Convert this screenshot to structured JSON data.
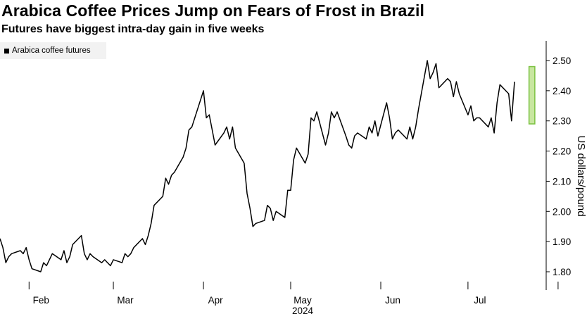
{
  "header": {
    "title": "Arabica Coffee Prices Jump on Fears of Frost in Brazil",
    "subtitle": "Futures have biggest intra-day gain in five weeks"
  },
  "colors": {
    "line": "#000000",
    "highlight_fill": "#c8e6a0",
    "highlight_stroke": "#7cc242",
    "legend_bg": "#f2f2f2"
  },
  "chart_data": {
    "type": "line",
    "title": "Arabica Coffee Prices Jump on Fears of Frost in Brazil",
    "subtitle": "Futures have biggest intra-day gain in five weeks",
    "ylabel": "US dollars/pound",
    "xlabel": "",
    "ylim": [
      1.73,
      2.56
    ],
    "yticks": [
      "1.80",
      "1.90",
      "2.00",
      "2.10",
      "2.20",
      "2.30",
      "2.40",
      "2.50"
    ],
    "ytick_values": [
      1.8,
      1.9,
      2.0,
      2.1,
      2.2,
      2.3,
      2.4,
      2.5
    ],
    "xlim": [
      "2024-01-22",
      "2024-07-25"
    ],
    "xticks": [
      {
        "label": "Feb",
        "date": "2024-02-01"
      },
      {
        "label": "Mar",
        "date": "2024-03-01"
      },
      {
        "label": "Apr",
        "date": "2024-04-01"
      },
      {
        "label": "May",
        "date": "2024-05-01"
      },
      {
        "label": "Jun",
        "date": "2024-06-01"
      },
      {
        "label": "Jul",
        "date": "2024-07-01"
      }
    ],
    "year_label": "2024",
    "grid": false,
    "legend_position": "top-left",
    "highlight": {
      "x_from": "2024-07-22",
      "x_to": "2024-07-24",
      "y_from": 2.29,
      "y_to": 2.48
    },
    "series": [
      {
        "name": "Arabica coffee futures",
        "points": [
          [
            "2024-01-22",
            1.91
          ],
          [
            "2024-01-23",
            1.88
          ],
          [
            "2024-01-24",
            1.83
          ],
          [
            "2024-01-25",
            1.85
          ],
          [
            "2024-01-26",
            1.86
          ],
          [
            "2024-01-29",
            1.87
          ],
          [
            "2024-01-30",
            1.86
          ],
          [
            "2024-01-31",
            1.88
          ],
          [
            "2024-02-01",
            1.84
          ],
          [
            "2024-02-02",
            1.81
          ],
          [
            "2024-02-05",
            1.8
          ],
          [
            "2024-02-06",
            1.83
          ],
          [
            "2024-02-07",
            1.82
          ],
          [
            "2024-02-08",
            1.84
          ],
          [
            "2024-02-09",
            1.86
          ],
          [
            "2024-02-12",
            1.84
          ],
          [
            "2024-02-13",
            1.87
          ],
          [
            "2024-02-14",
            1.83
          ],
          [
            "2024-02-15",
            1.85
          ],
          [
            "2024-02-16",
            1.89
          ],
          [
            "2024-02-19",
            1.92
          ],
          [
            "2024-02-20",
            1.86
          ],
          [
            "2024-02-21",
            1.84
          ],
          [
            "2024-02-22",
            1.86
          ],
          [
            "2024-02-23",
            1.85
          ],
          [
            "2024-02-26",
            1.83
          ],
          [
            "2024-02-27",
            1.84
          ],
          [
            "2024-02-28",
            1.83
          ],
          [
            "2024-02-29",
            1.82
          ],
          [
            "2024-03-01",
            1.84
          ],
          [
            "2024-03-04",
            1.83
          ],
          [
            "2024-03-05",
            1.86
          ],
          [
            "2024-03-06",
            1.85
          ],
          [
            "2024-03-07",
            1.86
          ],
          [
            "2024-03-08",
            1.88
          ],
          [
            "2024-03-11",
            1.91
          ],
          [
            "2024-03-12",
            1.89
          ],
          [
            "2024-03-13",
            1.92
          ],
          [
            "2024-03-14",
            1.96
          ],
          [
            "2024-03-15",
            2.02
          ],
          [
            "2024-03-18",
            2.05
          ],
          [
            "2024-03-19",
            2.11
          ],
          [
            "2024-03-20",
            2.09
          ],
          [
            "2024-03-21",
            2.12
          ],
          [
            "2024-03-22",
            2.13
          ],
          [
            "2024-03-25",
            2.18
          ],
          [
            "2024-03-26",
            2.21
          ],
          [
            "2024-03-27",
            2.27
          ],
          [
            "2024-03-28",
            2.28
          ],
          [
            "2024-04-01",
            2.4
          ],
          [
            "2024-04-02",
            2.31
          ],
          [
            "2024-04-03",
            2.32
          ],
          [
            "2024-04-04",
            2.27
          ],
          [
            "2024-04-05",
            2.22
          ],
          [
            "2024-04-08",
            2.26
          ],
          [
            "2024-04-09",
            2.28
          ],
          [
            "2024-04-10",
            2.24
          ],
          [
            "2024-04-11",
            2.28
          ],
          [
            "2024-04-12",
            2.21
          ],
          [
            "2024-04-15",
            2.16
          ],
          [
            "2024-04-16",
            2.06
          ],
          [
            "2024-04-17",
            2.01
          ],
          [
            "2024-04-18",
            1.95
          ],
          [
            "2024-04-19",
            1.96
          ],
          [
            "2024-04-22",
            1.97
          ],
          [
            "2024-04-23",
            2.02
          ],
          [
            "2024-04-24",
            2.01
          ],
          [
            "2024-04-25",
            1.97
          ],
          [
            "2024-04-26",
            2.0
          ],
          [
            "2024-04-29",
            1.98
          ],
          [
            "2024-04-30",
            2.07
          ],
          [
            "2024-05-01",
            2.07
          ],
          [
            "2024-05-02",
            2.17
          ],
          [
            "2024-05-03",
            2.21
          ],
          [
            "2024-05-06",
            2.16
          ],
          [
            "2024-05-07",
            2.19
          ],
          [
            "2024-05-08",
            2.31
          ],
          [
            "2024-05-09",
            2.3
          ],
          [
            "2024-05-10",
            2.33
          ],
          [
            "2024-05-13",
            2.22
          ],
          [
            "2024-05-14",
            2.26
          ],
          [
            "2024-05-15",
            2.33
          ],
          [
            "2024-05-16",
            2.31
          ],
          [
            "2024-05-17",
            2.33
          ],
          [
            "2024-05-20",
            2.25
          ],
          [
            "2024-05-21",
            2.22
          ],
          [
            "2024-05-22",
            2.21
          ],
          [
            "2024-05-23",
            2.25
          ],
          [
            "2024-05-24",
            2.26
          ],
          [
            "2024-05-27",
            2.24
          ],
          [
            "2024-05-28",
            2.28
          ],
          [
            "2024-05-29",
            2.26
          ],
          [
            "2024-05-30",
            2.3
          ],
          [
            "2024-05-31",
            2.25
          ],
          [
            "2024-06-03",
            2.36
          ],
          [
            "2024-06-04",
            2.31
          ],
          [
            "2024-06-05",
            2.24
          ],
          [
            "2024-06-06",
            2.26
          ],
          [
            "2024-06-07",
            2.27
          ],
          [
            "2024-06-10",
            2.24
          ],
          [
            "2024-06-11",
            2.28
          ],
          [
            "2024-06-12",
            2.24
          ],
          [
            "2024-06-13",
            2.28
          ],
          [
            "2024-06-14",
            2.34
          ],
          [
            "2024-06-17",
            2.5
          ],
          [
            "2024-06-18",
            2.44
          ],
          [
            "2024-06-19",
            2.46
          ],
          [
            "2024-06-20",
            2.49
          ],
          [
            "2024-06-21",
            2.41
          ],
          [
            "2024-06-24",
            2.44
          ],
          [
            "2024-06-25",
            2.43
          ],
          [
            "2024-06-26",
            2.38
          ],
          [
            "2024-06-27",
            2.43
          ],
          [
            "2024-06-28",
            2.39
          ],
          [
            "2024-07-01",
            2.32
          ],
          [
            "2024-07-02",
            2.35
          ],
          [
            "2024-07-03",
            2.3
          ],
          [
            "2024-07-04",
            2.31
          ],
          [
            "2024-07-05",
            2.31
          ],
          [
            "2024-07-08",
            2.28
          ],
          [
            "2024-07-09",
            2.31
          ],
          [
            "2024-07-10",
            2.26
          ],
          [
            "2024-07-11",
            2.36
          ],
          [
            "2024-07-12",
            2.42
          ],
          [
            "2024-07-15",
            2.39
          ],
          [
            "2024-07-16",
            2.3
          ],
          [
            "2024-07-17",
            2.43
          ]
        ]
      }
    ]
  }
}
